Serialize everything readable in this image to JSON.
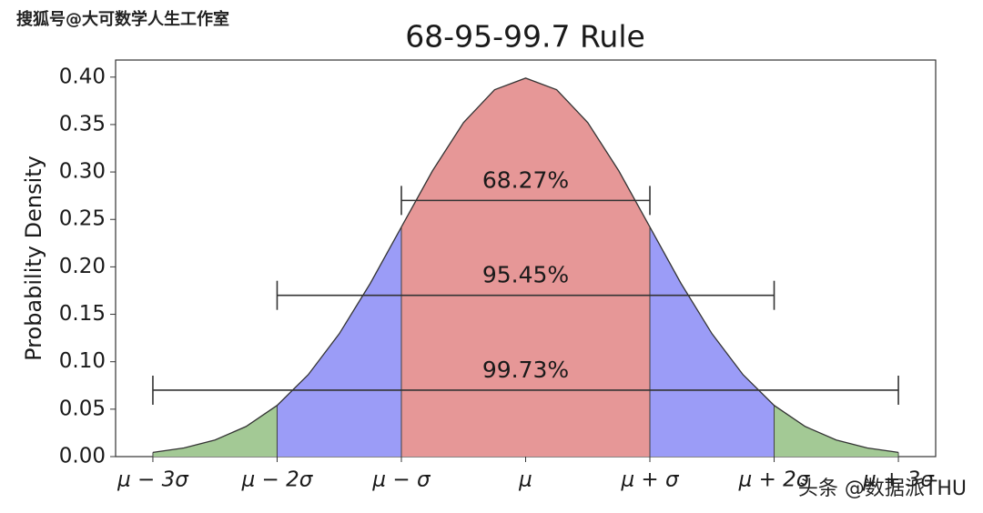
{
  "chart_data": {
    "type": "area",
    "title": "68-95-99.7 Rule",
    "y_label": "Probability Density",
    "x": [
      -3,
      -2.75,
      -2.5,
      -2.25,
      -2,
      -1.75,
      -1.5,
      -1.25,
      -1,
      -0.75,
      -0.5,
      -0.25,
      0,
      0.25,
      0.5,
      0.75,
      1,
      1.25,
      1.5,
      1.75,
      2,
      2.25,
      2.5,
      2.75,
      3
    ],
    "values": [
      0.004432,
      0.009094,
      0.017528,
      0.03174,
      0.053991,
      0.086277,
      0.129518,
      0.182649,
      0.241971,
      0.301137,
      0.352065,
      0.386668,
      0.398942,
      0.386668,
      0.352065,
      0.301137,
      0.241971,
      0.182649,
      0.129518,
      0.086277,
      0.053991,
      0.03174,
      0.017528,
      0.009094,
      0.004432
    ],
    "line_color": "#333333",
    "regions": [
      {
        "range": [
          -3,
          -2
        ],
        "color": "#a3c995"
      },
      {
        "range": [
          -2,
          -1
        ],
        "color": "#9b9cf7"
      },
      {
        "range": [
          -1,
          1
        ],
        "color": "#e69797"
      },
      {
        "range": [
          1,
          2
        ],
        "color": "#9b9cf7"
      },
      {
        "range": [
          2,
          3
        ],
        "color": "#a3c995"
      }
    ],
    "intervals": [
      {
        "label": "68.27%",
        "y": 0.27,
        "from": -1,
        "to": 1
      },
      {
        "label": "95.45%",
        "y": 0.17,
        "from": -2,
        "to": 2
      },
      {
        "label": "99.73%",
        "y": 0.07,
        "from": -3,
        "to": 3
      }
    ],
    "xlim": [
      -3.3,
      3.3
    ],
    "ylim": [
      0,
      0.418
    ],
    "xticks": [
      {
        "value": -3,
        "label": "μ − 3σ"
      },
      {
        "value": -2,
        "label": "μ − 2σ"
      },
      {
        "value": -1,
        "label": "μ − σ"
      },
      {
        "value": 0,
        "label": "μ"
      },
      {
        "value": 1,
        "label": "μ + σ"
      },
      {
        "value": 2,
        "label": "μ + 2σ"
      },
      {
        "value": 3,
        "label": "μ + 3σ"
      }
    ],
    "yticks": [
      {
        "value": 0,
        "label": "0.00"
      },
      0.05,
      {
        "value": 0.1,
        "label": "0.10"
      },
      0.15,
      {
        "value": 0.2,
        "label": "0.20"
      },
      0.25,
      {
        "value": 0.3,
        "label": "0.30"
      },
      0.35,
      {
        "value": 0.4,
        "label": "0.40"
      }
    ]
  },
  "watermarks": [
    "搜狐号@大可数学人生工作室",
    "头条 @数据派THU"
  ]
}
